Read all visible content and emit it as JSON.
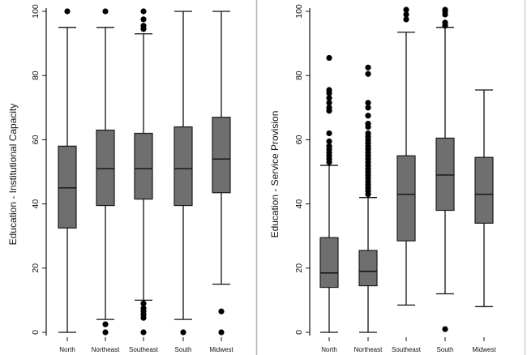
{
  "chart_data": [
    {
      "type": "box",
      "title": "",
      "ylabel": "Education - Institutional Capacity",
      "xlabel": "",
      "ylim": [
        0,
        100
      ],
      "yticks": [
        0,
        20,
        40,
        60,
        80,
        100
      ],
      "grid": false,
      "box_color": "#6f6f6f",
      "categories": [
        "North",
        "Northeast",
        "Southeast",
        "South",
        "Midwest"
      ],
      "boxes": [
        {
          "category": "North",
          "whisker_low": 0,
          "q1": 32.5,
          "median": 45,
          "q3": 58,
          "whisker_high": 95,
          "outliers": [
            100
          ]
        },
        {
          "category": "Northeast",
          "whisker_low": 4,
          "q1": 39.5,
          "median": 51,
          "q3": 63,
          "whisker_high": 95,
          "outliers": [
            0,
            2.5,
            100
          ]
        },
        {
          "category": "Southeast",
          "whisker_low": 10,
          "q1": 41.5,
          "median": 51,
          "q3": 62,
          "whisker_high": 93,
          "outliers": [
            0,
            4.5,
            5.5,
            6.5,
            7.5,
            9,
            94.5,
            95.5,
            97.5,
            100
          ]
        },
        {
          "category": "South",
          "whisker_low": 4,
          "q1": 39.5,
          "median": 51,
          "q3": 64,
          "whisker_high": 100,
          "outliers": [
            0
          ]
        },
        {
          "category": "Midwest",
          "whisker_low": 15,
          "q1": 43.5,
          "median": 54,
          "q3": 67,
          "whisker_high": 100,
          "outliers": [
            0,
            6.5
          ]
        }
      ]
    },
    {
      "type": "box",
      "title": "",
      "ylabel": "Education - Service Provision",
      "xlabel": "",
      "ylim": [
        0,
        100
      ],
      "yticks": [
        0,
        20,
        40,
        60,
        80,
        100
      ],
      "grid": false,
      "box_color": "#6f6f6f",
      "categories": [
        "North",
        "Northeast",
        "Southeast",
        "South",
        "Midwest"
      ],
      "boxes": [
        {
          "category": "North",
          "whisker_low": 0,
          "q1": 14,
          "median": 18.5,
          "q3": 29.5,
          "whisker_high": 52,
          "outliers": [
            53,
            54,
            55,
            56,
            57,
            58,
            59.5,
            62,
            69,
            70,
            71.5,
            73,
            74.5,
            75.5,
            85.5
          ]
        },
        {
          "category": "Northeast",
          "whisker_low": 0,
          "q1": 14.5,
          "median": 19,
          "q3": 25.5,
          "whisker_high": 42,
          "outliers": [
            43,
            44,
            45,
            46,
            47,
            48,
            49,
            50,
            51,
            52,
            53,
            54,
            55,
            56,
            57,
            58,
            59,
            60,
            61,
            62,
            64,
            65,
            67.5,
            70,
            71.5,
            80.5,
            82.5
          ]
        },
        {
          "category": "Southeast",
          "whisker_low": 8.5,
          "q1": 28.5,
          "median": 43,
          "q3": 55,
          "whisker_high": 93.5,
          "outliers": [
            97.5,
            99,
            100.5
          ]
        },
        {
          "category": "South",
          "whisker_low": 12,
          "q1": 38,
          "median": 49,
          "q3": 60.5,
          "whisker_high": 95,
          "outliers": [
            1,
            95.5,
            96.5,
            99,
            100,
            100.5
          ]
        },
        {
          "category": "Midwest",
          "whisker_low": 8,
          "q1": 34,
          "median": 43,
          "q3": 54.5,
          "whisker_high": 75.5,
          "outliers": []
        }
      ]
    }
  ]
}
